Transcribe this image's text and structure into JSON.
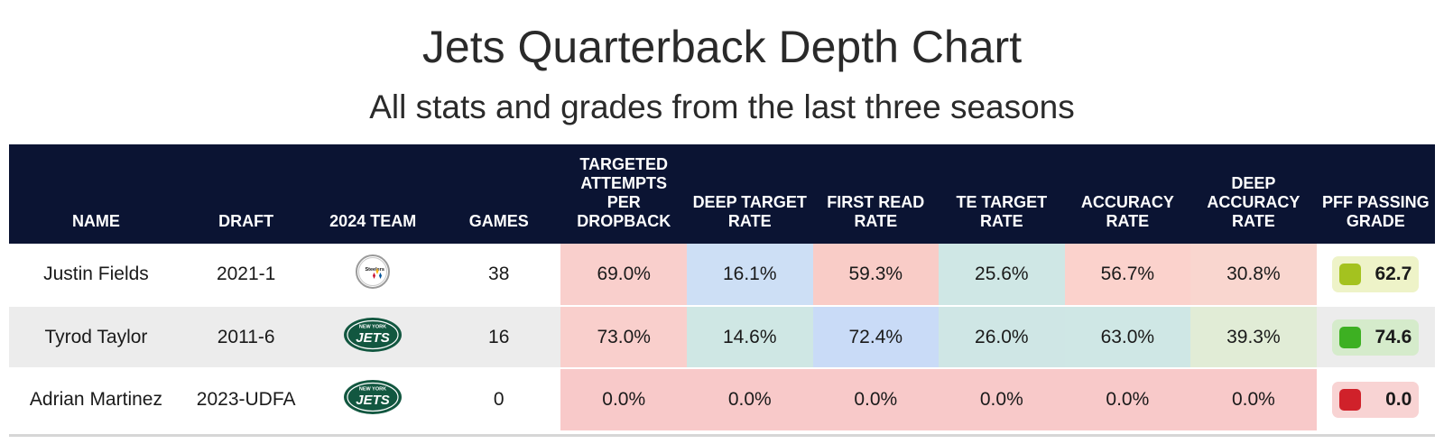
{
  "title": "Jets Quarterback Depth Chart",
  "subtitle": "All stats and grades from the last three seasons",
  "columns": {
    "name": "NAME",
    "draft": "DRAFT",
    "team": "2024 TEAM",
    "games": "GAMES",
    "tapd": "TARGETED ATTEMPTS PER DROPBACK",
    "deep_target": "DEEP TARGET RATE",
    "first_read": "FIRST READ RATE",
    "te_target": "TE TARGET RATE",
    "accuracy": "ACCURACY RATE",
    "deep_accuracy": "DEEP ACCURACY RATE",
    "pff": "PFF PASSING GRADE"
  },
  "rows": [
    {
      "name": "Justin Fields",
      "draft": "2021-1",
      "team_logo": "steelers-logo",
      "games": "38",
      "stats": [
        "69.0%",
        "16.1%",
        "59.3%",
        "25.6%",
        "56.7%",
        "30.8%"
      ],
      "stat_colors": [
        "#f9cfcc",
        "#cddff5",
        "#f9ccc7",
        "#cfe7e5",
        "#fbd2cc",
        "#f9d6cf"
      ],
      "grade": "62.7",
      "grade_color": "#a4c21f",
      "grade_bg": "#eef3c8"
    },
    {
      "name": "Tyrod Taylor",
      "draft": "2011-6",
      "team_logo": "jets-logo",
      "games": "16",
      "stats": [
        "73.0%",
        "14.6%",
        "72.4%",
        "26.0%",
        "63.0%",
        "39.3%"
      ],
      "stat_colors": [
        "#f9cfcc",
        "#cfe7e4",
        "#c9dbf7",
        "#cfe6e5",
        "#cfe7e5",
        "#e1ecd6"
      ],
      "grade": "74.6",
      "grade_color": "#3db022",
      "grade_bg": "#d5ebcb"
    },
    {
      "name": "Adrian Martinez",
      "draft": "2023-UDFA",
      "team_logo": "jets-logo",
      "games": "0",
      "stats": [
        "0.0%",
        "0.0%",
        "0.0%",
        "0.0%",
        "0.0%",
        "0.0%"
      ],
      "stat_colors": [
        "#f8c9c9",
        "#f8c9c9",
        "#f8c9c9",
        "#f8c9c9",
        "#f8c9c9",
        "#f8c9c9"
      ],
      "grade": "0.0",
      "grade_color": "#d0212a",
      "grade_bg": "#f8d3d3"
    }
  ],
  "colors": {
    "header_bg": "#0b1433",
    "alt_row_bg": "#ececec",
    "jets_green": "#125740",
    "steelers_gold": "#ffb612"
  }
}
